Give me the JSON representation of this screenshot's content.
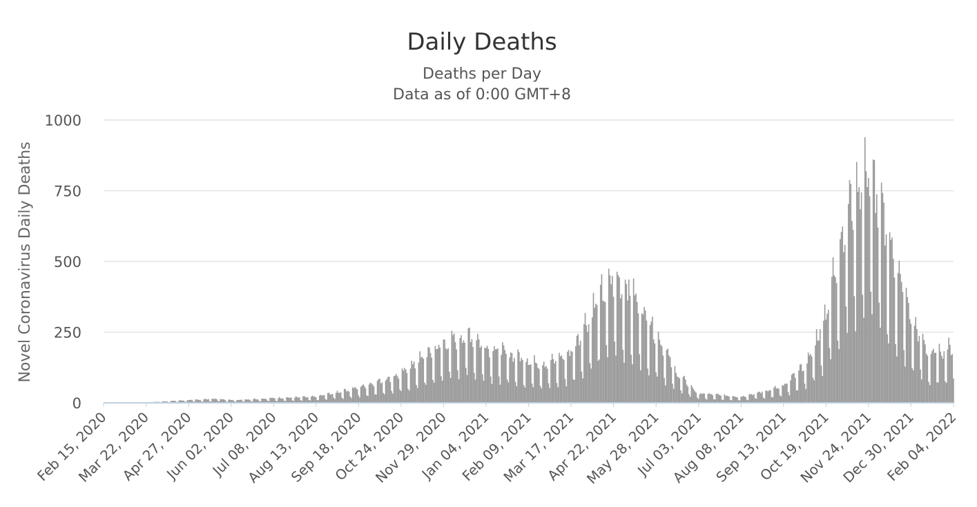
{
  "chart_data": {
    "type": "bar",
    "title": "Daily Deaths",
    "subtitle_line1": "Deaths per Day",
    "subtitle_line2": "Data as of 0:00 GMT+8",
    "ylabel": "Novel Coronavirus Daily Deaths",
    "xlabel": "",
    "ylim": [
      0,
      1000
    ],
    "yticks": [
      0,
      250,
      500,
      750,
      1000
    ],
    "x_start": "Feb 15, 2020",
    "x_end": "Feb 04, 2022",
    "xtick_labels": [
      "Feb 15, 2020",
      "Mar 22, 2020",
      "Apr 27, 2020",
      "Jun 02, 2020",
      "Jul 08, 2020",
      "Aug 13, 2020",
      "Sep 18, 2020",
      "Oct 24, 2020",
      "Nov 29, 2020",
      "Jan 04, 2021",
      "Feb 09, 2021",
      "Mar 17, 2021",
      "Apr 22, 2021",
      "May 28, 2021",
      "Jul 03, 2021",
      "Aug 08, 2021",
      "Sep 13, 2021",
      "Oct 19, 2021",
      "Nov 24, 2021",
      "Dec 30, 2021",
      "Feb 04, 2022"
    ],
    "grid": true,
    "legend": "none",
    "bar_color": "#999999",
    "axis_color": "#c0d0e0",
    "series": [
      {
        "trend_points": [
          [
            "Feb 15, 2020",
            0
          ],
          [
            "Mar 22, 2020",
            1
          ],
          [
            "Apr 10, 2020",
            5
          ],
          [
            "Apr 27, 2020",
            8
          ],
          [
            "May 20, 2020",
            12
          ],
          [
            "Jun 02, 2020",
            8
          ],
          [
            "Jul 08, 2020",
            14
          ],
          [
            "Aug 13, 2020",
            18
          ],
          [
            "Sep 18, 2020",
            45
          ],
          [
            "Oct 24, 2020",
            85
          ],
          [
            "Nov 10, 2020",
            130
          ],
          [
            "Nov 29, 2020",
            175
          ],
          [
            "Dec 20, 2020",
            205
          ],
          [
            "Jan 04, 2021",
            170
          ],
          [
            "Feb 09, 2021",
            125
          ],
          [
            "Feb 25, 2021",
            115
          ],
          [
            "Mar 17, 2021",
            150
          ],
          [
            "Apr 05, 2021",
            280
          ],
          [
            "Apr 22, 2021",
            370
          ],
          [
            "May 05, 2021",
            340
          ],
          [
            "May 28, 2021",
            210
          ],
          [
            "Jun 15, 2021",
            85
          ],
          [
            "Jul 03, 2021",
            28
          ],
          [
            "Aug 08, 2021",
            18
          ],
          [
            "Sep 13, 2021",
            48
          ],
          [
            "Oct 05, 2021",
            130
          ],
          [
            "Oct 19, 2021",
            270
          ],
          [
            "Nov 05, 2021",
            560
          ],
          [
            "Nov 20, 2021",
            680
          ],
          [
            "Nov 24, 2021",
            690
          ],
          [
            "Dec 05, 2021",
            560
          ],
          [
            "Dec 30, 2021",
            250
          ],
          [
            "Jan 15, 2022",
            140
          ],
          [
            "Feb 04, 2022",
            165
          ]
        ]
      }
    ]
  }
}
